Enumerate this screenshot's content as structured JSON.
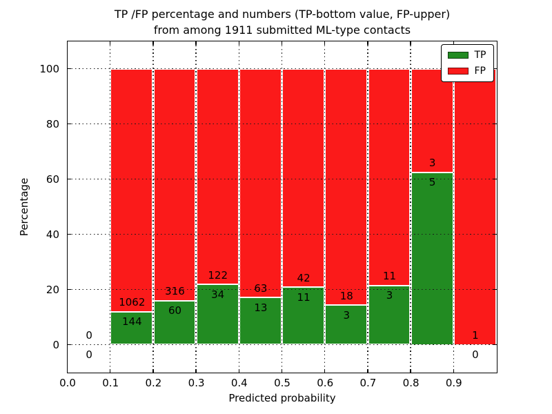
{
  "chart_data": {
    "type": "bar",
    "subtype": "stacked-percentage-histogram",
    "title_lines": [
      "TP /FP percentage and numbers (TP-bottom value, FP-upper)",
      "from among 1911 submitted ML-type contacts"
    ],
    "xlabel": "Predicted probability",
    "ylabel": "Percentage",
    "xlim": [
      0.0,
      1.0
    ],
    "ylim": [
      -10,
      110
    ],
    "xtick_labels": [
      "0.0",
      "0.1",
      "0.2",
      "0.3",
      "0.4",
      "0.5",
      "0.6",
      "0.7",
      "0.8",
      "0.9"
    ],
    "yticks": [
      0,
      20,
      40,
      60,
      80,
      100
    ],
    "grid": "dotted",
    "total_contacts": 1911,
    "legend": {
      "position": "upper right",
      "entries": [
        {
          "label": "TP",
          "color": "#228b22"
        },
        {
          "label": "FP",
          "color": "#fb1a1a"
        }
      ]
    },
    "bins": [
      {
        "range": [
          0.0,
          0.1
        ],
        "tp": 0,
        "fp": 0
      },
      {
        "range": [
          0.1,
          0.2
        ],
        "tp": 144,
        "fp": 1062
      },
      {
        "range": [
          0.2,
          0.3
        ],
        "tp": 60,
        "fp": 316
      },
      {
        "range": [
          0.3,
          0.4
        ],
        "tp": 34,
        "fp": 122
      },
      {
        "range": [
          0.4,
          0.5
        ],
        "tp": 13,
        "fp": 63
      },
      {
        "range": [
          0.5,
          0.6
        ],
        "tp": 11,
        "fp": 42
      },
      {
        "range": [
          0.6,
          0.7
        ],
        "tp": 3,
        "fp": 18
      },
      {
        "range": [
          0.7,
          0.8
        ],
        "tp": 3,
        "fp": 11
      },
      {
        "range": [
          0.8,
          0.9
        ],
        "tp": 5,
        "fp": 3
      },
      {
        "range": [
          0.9,
          1.0
        ],
        "tp": 0,
        "fp": 1
      }
    ]
  },
  "colors": {
    "tp": "#228b22",
    "fp": "#fb1a1a",
    "grid": "#1a1a1a",
    "frame": "#000000",
    "bar_edge": "#ffffff",
    "background": "#ffffff",
    "text": "#000000"
  }
}
